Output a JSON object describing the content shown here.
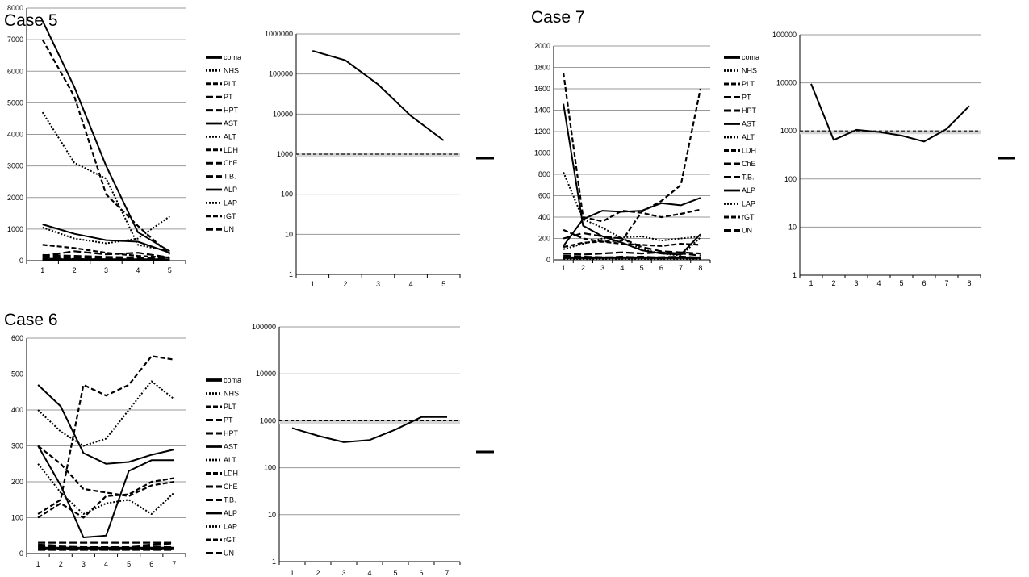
{
  "chart_data": [
    {
      "id": "case5-lab",
      "type": "line",
      "title": "Case 5",
      "x": [
        1,
        2,
        3,
        4,
        5
      ],
      "ylim": [
        0,
        8000
      ],
      "yticks": [
        0,
        1000,
        2000,
        3000,
        4000,
        5000,
        6000,
        7000,
        8000
      ],
      "grid": true,
      "legend_position": "right",
      "series": [
        {
          "name": "coma",
          "style": "solid-thick",
          "values": [
            30,
            30,
            30,
            30,
            30
          ]
        },
        {
          "name": "NHS",
          "style": "dotted",
          "values": [
            20,
            25,
            20,
            20,
            10
          ]
        },
        {
          "name": "PLT",
          "style": "dashed",
          "values": [
            60,
            50,
            40,
            30,
            20
          ]
        },
        {
          "name": "PT",
          "style": "long-dash",
          "values": [
            130,
            110,
            90,
            70,
            50
          ]
        },
        {
          "name": "HPT",
          "style": "long-dash",
          "values": [
            100,
            90,
            70,
            60,
            40
          ]
        },
        {
          "name": "AST",
          "style": "solid",
          "values": [
            7600,
            5500,
            3000,
            900,
            300
          ]
        },
        {
          "name": "ALT",
          "style": "dotted",
          "values": [
            4700,
            3100,
            2600,
            500,
            300
          ]
        },
        {
          "name": "LDH",
          "style": "dashed",
          "values": [
            7000,
            5200,
            2100,
            1100,
            200
          ]
        },
        {
          "name": "ChE",
          "style": "long-dash",
          "values": [
            180,
            150,
            120,
            100,
            80
          ]
        },
        {
          "name": "T.B.",
          "style": "long-dash",
          "values": [
            150,
            300,
            200,
            250,
            100
          ]
        },
        {
          "name": "ALP",
          "style": "solid",
          "values": [
            1150,
            850,
            650,
            600,
            250
          ]
        },
        {
          "name": "LAP",
          "style": "dotted",
          "values": [
            1050,
            700,
            550,
            700,
            1400
          ]
        },
        {
          "name": "rGT",
          "style": "dashed",
          "values": [
            500,
            400,
            250,
            150,
            100
          ]
        },
        {
          "name": "UN",
          "style": "long-dash",
          "values": [
            40,
            40,
            40,
            40,
            40
          ]
        }
      ]
    },
    {
      "id": "case5-log",
      "type": "line",
      "title": "",
      "scale": "log",
      "x": [
        1,
        2,
        3,
        4,
        5
      ],
      "ylim": [
        1,
        1000000
      ],
      "yticks": [
        1,
        10,
        100,
        1000,
        10000,
        100000,
        1000000
      ],
      "grid": true,
      "reference_line": 1000,
      "legend_position": "right",
      "series": [
        {
          "name": "",
          "style": "solid",
          "values": [
            380000,
            220000,
            55000,
            9000,
            2200
          ]
        }
      ]
    },
    {
      "id": "case6-lab",
      "type": "line",
      "title": "Case 6",
      "x": [
        1,
        2,
        3,
        4,
        5,
        6,
        7
      ],
      "ylim": [
        0,
        600
      ],
      "yticks": [
        0,
        100,
        200,
        300,
        400,
        500,
        600
      ],
      "grid": true,
      "legend_position": "right",
      "series": [
        {
          "name": "coma",
          "style": "solid-thick",
          "values": [
            15,
            15,
            15,
            15,
            15,
            15,
            15
          ]
        },
        {
          "name": "NHS",
          "style": "dotted",
          "values": [
            12,
            12,
            10,
            10,
            10,
            12,
            12
          ]
        },
        {
          "name": "PLT",
          "style": "dashed",
          "values": [
            110,
            150,
            470,
            440,
            470,
            550,
            540
          ]
        },
        {
          "name": "PT",
          "style": "long-dash",
          "values": [
            20,
            18,
            16,
            15,
            15,
            18,
            20
          ]
        },
        {
          "name": "HPT",
          "style": "long-dash",
          "values": [
            25,
            22,
            20,
            20,
            20,
            25,
            28
          ]
        },
        {
          "name": "AST",
          "style": "solid",
          "values": [
            470,
            410,
            280,
            250,
            255,
            275,
            290
          ]
        },
        {
          "name": "ALT",
          "style": "dotted",
          "values": [
            400,
            340,
            300,
            320,
            400,
            480,
            430
          ]
        },
        {
          "name": "LDH",
          "style": "dashed",
          "values": [
            300,
            250,
            180,
            170,
            160,
            190,
            200
          ]
        },
        {
          "name": "ChE",
          "style": "long-dash",
          "values": [
            30,
            30,
            30,
            30,
            30,
            30,
            30
          ]
        },
        {
          "name": "T.B.",
          "style": "long-dash",
          "values": [
            10,
            10,
            10,
            10,
            10,
            10,
            10
          ]
        },
        {
          "name": "ALP",
          "style": "solid",
          "values": [
            300,
            190,
            45,
            50,
            230,
            260,
            260
          ]
        },
        {
          "name": "LAP",
          "style": "dotted",
          "values": [
            250,
            170,
            110,
            140,
            150,
            110,
            170
          ]
        },
        {
          "name": "rGT",
          "style": "dashed",
          "values": [
            100,
            140,
            100,
            160,
            165,
            200,
            210
          ]
        },
        {
          "name": "UN",
          "style": "long-dash",
          "values": [
            20,
            20,
            18,
            18,
            18,
            20,
            20
          ]
        }
      ]
    },
    {
      "id": "case6-log",
      "type": "line",
      "title": "",
      "scale": "log",
      "x": [
        1,
        2,
        3,
        4,
        5,
        6,
        7
      ],
      "ylim": [
        1,
        100000
      ],
      "yticks": [
        1,
        10,
        100,
        1000,
        10000,
        100000
      ],
      "grid": true,
      "reference_line": 1000,
      "legend_position": "right",
      "series": [
        {
          "name": "",
          "style": "solid",
          "values": [
            700,
            480,
            350,
            390,
            650,
            1200,
            1200
          ]
        }
      ]
    },
    {
      "id": "case7-lab",
      "type": "line",
      "title": "Case 7",
      "x": [
        1,
        2,
        3,
        4,
        5,
        6,
        7,
        8
      ],
      "ylim": [
        0,
        2000
      ],
      "yticks": [
        0,
        200,
        400,
        600,
        800,
        1000,
        1200,
        1400,
        1600,
        1800,
        2000
      ],
      "grid": true,
      "legend_position": "right",
      "series": [
        {
          "name": "coma",
          "style": "solid-thick",
          "values": [
            20,
            20,
            20,
            20,
            20,
            20,
            20,
            20
          ]
        },
        {
          "name": "NHS",
          "style": "dotted",
          "values": [
            10,
            10,
            10,
            10,
            10,
            10,
            10,
            10
          ]
        },
        {
          "name": "PLT",
          "style": "dashed",
          "values": [
            280,
            200,
            170,
            180,
            450,
            550,
            700,
            1600
          ]
        },
        {
          "name": "PT",
          "style": "long-dash",
          "values": [
            40,
            30,
            25,
            20,
            30,
            20,
            25,
            10
          ]
        },
        {
          "name": "HPT",
          "style": "long-dash",
          "values": [
            30,
            25,
            20,
            30,
            20,
            25,
            30,
            20
          ]
        },
        {
          "name": "AST",
          "style": "solid",
          "values": [
            1460,
            320,
            220,
            160,
            90,
            60,
            50,
            240
          ]
        },
        {
          "name": "ALT",
          "style": "dotted",
          "values": [
            820,
            380,
            300,
            200,
            100,
            60,
            40,
            210
          ]
        },
        {
          "name": "LDH",
          "style": "dashed",
          "values": [
            1750,
            400,
            360,
            460,
            440,
            400,
            430,
            470
          ]
        },
        {
          "name": "ChE",
          "style": "long-dash",
          "values": [
            60,
            50,
            60,
            70,
            60,
            70,
            60,
            40
          ]
        },
        {
          "name": "T.B.",
          "style": "long-dash",
          "values": [
            200,
            250,
            220,
            200,
            120,
            80,
            70,
            60
          ]
        },
        {
          "name": "ALP",
          "style": "solid",
          "values": [
            130,
            380,
            460,
            450,
            460,
            530,
            510,
            580
          ]
        },
        {
          "name": "LAP",
          "style": "dotted",
          "values": [
            100,
            150,
            200,
            210,
            220,
            180,
            200,
            220
          ]
        },
        {
          "name": "rGT",
          "style": "dashed",
          "values": [
            120,
            160,
            170,
            150,
            140,
            130,
            150,
            140
          ]
        },
        {
          "name": "UN",
          "style": "long-dash",
          "values": [
            20,
            15,
            20,
            25,
            20,
            15,
            20,
            15
          ]
        }
      ]
    },
    {
      "id": "case7-log",
      "type": "line",
      "title": "",
      "scale": "log",
      "x": [
        1,
        2,
        3,
        4,
        5,
        6,
        7,
        8
      ],
      "ylim": [
        1,
        100000
      ],
      "yticks": [
        1,
        10,
        100,
        1000,
        10000,
        100000
      ],
      "grid": true,
      "reference_line": 1000,
      "legend_position": "right",
      "series": [
        {
          "name": "",
          "style": "solid",
          "values": [
            9500,
            650,
            1050,
            950,
            800,
            600,
            1100,
            3300
          ]
        }
      ]
    }
  ]
}
